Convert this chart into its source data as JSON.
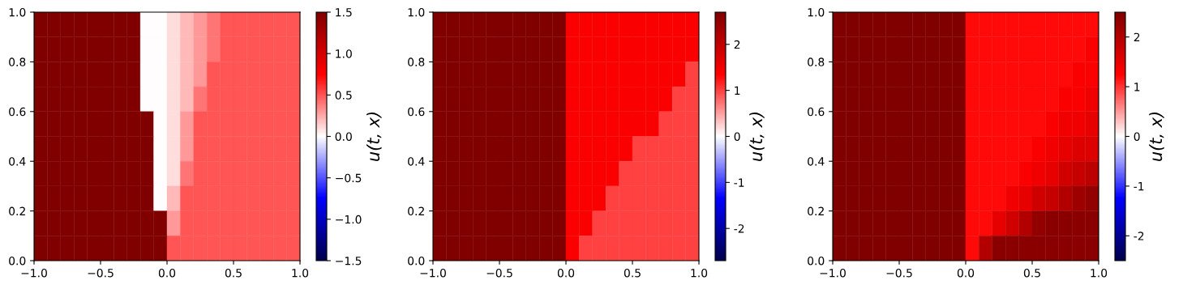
{
  "chart_data": [
    {
      "type": "heatmap",
      "xlim": [
        -1,
        1
      ],
      "ylim": [
        0,
        1
      ],
      "xticks": [
        {
          "value": -1,
          "label": "−1.0"
        },
        {
          "value": -0.5,
          "label": "−0.5"
        },
        {
          "value": 0,
          "label": "0.0"
        },
        {
          "value": 0.5,
          "label": "0.5"
        },
        {
          "value": 1,
          "label": "1.0"
        }
      ],
      "yticks": [
        {
          "value": 0,
          "label": "0.0"
        },
        {
          "value": 0.2,
          "label": "0.2"
        },
        {
          "value": 0.4,
          "label": "0.4"
        },
        {
          "value": 0.6,
          "label": "0.6"
        },
        {
          "value": 0.8,
          "label": "0.8"
        },
        {
          "value": 1,
          "label": "1.0"
        }
      ],
      "clim": [
        -1.5,
        1.5
      ],
      "clabel": "u(t, x)",
      "cticks": [
        {
          "value": -1.5,
          "label": "−1.5"
        },
        {
          "value": -1,
          "label": "−1.0"
        },
        {
          "value": -0.5,
          "label": "−0.5"
        },
        {
          "value": 0,
          "label": "0.0"
        },
        {
          "value": 0.5,
          "label": "0.5"
        },
        {
          "value": 1,
          "label": "1.0"
        },
        {
          "value": 1.5,
          "label": "1.5"
        }
      ],
      "cells": [
        [
          1.5,
          1.5,
          1.5,
          1.5,
          1.5,
          1.5,
          1.5,
          1.5,
          0,
          0,
          0.1,
          0.2,
          0.3,
          0.4,
          0.5,
          0.5,
          0.5,
          0.5,
          0.5,
          0.5
        ],
        [
          1.5,
          1.5,
          1.5,
          1.5,
          1.5,
          1.5,
          1.5,
          1.5,
          0,
          0,
          0.1,
          0.2,
          0.3,
          0.4,
          0.5,
          0.5,
          0.5,
          0.5,
          0.5,
          0.5
        ],
        [
          1.5,
          1.5,
          1.5,
          1.5,
          1.5,
          1.5,
          1.5,
          1.5,
          0,
          0,
          0.1,
          0.2,
          0.3,
          0.5,
          0.5,
          0.5,
          0.5,
          0.5,
          0.5,
          0.5
        ],
        [
          1.5,
          1.5,
          1.5,
          1.5,
          1.5,
          1.5,
          1.5,
          1.5,
          0,
          0,
          0.1,
          0.2,
          0.4,
          0.5,
          0.5,
          0.5,
          0.5,
          0.5,
          0.5,
          0.5
        ],
        [
          1.5,
          1.5,
          1.5,
          1.5,
          1.5,
          1.5,
          1.5,
          1.5,
          1.5,
          0,
          0.1,
          0.3,
          0.5,
          0.5,
          0.5,
          0.5,
          0.5,
          0.5,
          0.5,
          0.5
        ],
        [
          1.5,
          1.5,
          1.5,
          1.5,
          1.5,
          1.5,
          1.5,
          1.5,
          1.5,
          0,
          0.1,
          0.3,
          0.5,
          0.5,
          0.5,
          0.5,
          0.5,
          0.5,
          0.5,
          0.5
        ],
        [
          1.5,
          1.5,
          1.5,
          1.5,
          1.5,
          1.5,
          1.5,
          1.5,
          1.5,
          0,
          0.1,
          0.4,
          0.5,
          0.5,
          0.5,
          0.5,
          0.5,
          0.5,
          0.5,
          0.5
        ],
        [
          1.5,
          1.5,
          1.5,
          1.5,
          1.5,
          1.5,
          1.5,
          1.5,
          1.5,
          0,
          0.2,
          0.5,
          0.5,
          0.5,
          0.5,
          0.5,
          0.5,
          0.5,
          0.5,
          0.5
        ],
        [
          1.5,
          1.5,
          1.5,
          1.5,
          1.5,
          1.5,
          1.5,
          1.5,
          1.5,
          1.5,
          0.3,
          0.5,
          0.5,
          0.5,
          0.5,
          0.5,
          0.5,
          0.5,
          0.5,
          0.5
        ],
        [
          1.5,
          1.5,
          1.5,
          1.5,
          1.5,
          1.5,
          1.5,
          1.5,
          1.5,
          1.5,
          0.5,
          0.5,
          0.5,
          0.5,
          0.5,
          0.5,
          0.5,
          0.5,
          0.5,
          0.5
        ]
      ]
    },
    {
      "type": "heatmap",
      "xlim": [
        -1,
        1
      ],
      "ylim": [
        0,
        1
      ],
      "xticks": [
        {
          "value": -1,
          "label": "−1.0"
        },
        {
          "value": -0.5,
          "label": "−0.5"
        },
        {
          "value": 0,
          "label": "0.0"
        },
        {
          "value": 0.5,
          "label": "0.5"
        },
        {
          "value": 1,
          "label": "1.0"
        }
      ],
      "yticks": [
        {
          "value": 0,
          "label": "0.0"
        },
        {
          "value": 0.2,
          "label": "0.2"
        },
        {
          "value": 0.4,
          "label": "0.4"
        },
        {
          "value": 0.6,
          "label": "0.6"
        },
        {
          "value": 0.8,
          "label": "0.8"
        },
        {
          "value": 1,
          "label": "1.0"
        }
      ],
      "clim": [
        -2.7,
        2.7
      ],
      "clabel": "u(t, x)",
      "cticks": [
        -2,
        -1,
        0,
        1,
        2
      ],
      "cells": [
        [
          2.7,
          2.7,
          2.7,
          2.7,
          2.7,
          2.7,
          2.7,
          2.7,
          2.7,
          2.7,
          1.4,
          1.4,
          1.4,
          1.4,
          1.4,
          1.4,
          1.4,
          1.4,
          1.4,
          1.4
        ],
        [
          2.7,
          2.7,
          2.7,
          2.7,
          2.7,
          2.7,
          2.7,
          2.7,
          2.7,
          2.7,
          1.4,
          1.4,
          1.4,
          1.4,
          1.4,
          1.4,
          1.4,
          1.4,
          1.4,
          1.4
        ],
        [
          2.7,
          2.7,
          2.7,
          2.7,
          2.7,
          2.7,
          2.7,
          2.7,
          2.7,
          2.7,
          1.4,
          1.4,
          1.4,
          1.4,
          1.4,
          1.4,
          1.4,
          1.4,
          1.4,
          1.0
        ],
        [
          2.7,
          2.7,
          2.7,
          2.7,
          2.7,
          2.7,
          2.7,
          2.7,
          2.7,
          2.7,
          1.4,
          1.4,
          1.4,
          1.4,
          1.4,
          1.4,
          1.4,
          1.4,
          1.0,
          1.0
        ],
        [
          2.7,
          2.7,
          2.7,
          2.7,
          2.7,
          2.7,
          2.7,
          2.7,
          2.7,
          2.7,
          1.4,
          1.4,
          1.4,
          1.4,
          1.4,
          1.4,
          1.4,
          1.0,
          1.0,
          1.0
        ],
        [
          2.7,
          2.7,
          2.7,
          2.7,
          2.7,
          2.7,
          2.7,
          2.7,
          2.7,
          2.7,
          1.4,
          1.4,
          1.4,
          1.4,
          1.4,
          1.0,
          1.0,
          1.0,
          1.0,
          1.0
        ],
        [
          2.7,
          2.7,
          2.7,
          2.7,
          2.7,
          2.7,
          2.7,
          2.7,
          2.7,
          2.7,
          1.4,
          1.4,
          1.4,
          1.4,
          1.0,
          1.0,
          1.0,
          1.0,
          1.0,
          1.0
        ],
        [
          2.7,
          2.7,
          2.7,
          2.7,
          2.7,
          2.7,
          2.7,
          2.7,
          2.7,
          2.7,
          1.4,
          1.4,
          1.4,
          1.0,
          1.0,
          1.0,
          1.0,
          1.0,
          1.0,
          1.0
        ],
        [
          2.7,
          2.7,
          2.7,
          2.7,
          2.7,
          2.7,
          2.7,
          2.7,
          2.7,
          2.7,
          1.4,
          1.4,
          1.0,
          1.0,
          1.0,
          1.0,
          1.0,
          1.0,
          1.0,
          1.0
        ],
        [
          2.7,
          2.7,
          2.7,
          2.7,
          2.7,
          2.7,
          2.7,
          2.7,
          2.7,
          2.7,
          1.4,
          1.0,
          1.0,
          1.0,
          1.0,
          1.0,
          1.0,
          1.0,
          1.0,
          1.0
        ]
      ]
    },
    {
      "type": "heatmap",
      "xlim": [
        -1,
        1
      ],
      "ylim": [
        0,
        1
      ],
      "xticks": [
        {
          "value": -1,
          "label": "−1.0"
        },
        {
          "value": -0.5,
          "label": "−0.5"
        },
        {
          "value": 0,
          "label": "0.0"
        },
        {
          "value": 0.5,
          "label": "0.5"
        },
        {
          "value": 1,
          "label": "1.0"
        }
      ],
      "yticks": [
        {
          "value": 0,
          "label": "0.0"
        },
        {
          "value": 0.2,
          "label": "0.2"
        },
        {
          "value": 0.4,
          "label": "0.4"
        },
        {
          "value": 0.6,
          "label": "0.6"
        },
        {
          "value": 0.8,
          "label": "0.8"
        },
        {
          "value": 1,
          "label": "1.0"
        }
      ],
      "clim": [
        -2.5,
        2.5
      ],
      "clabel": "u(t, x)",
      "cticks": [
        -2,
        -1,
        0,
        1,
        2
      ],
      "cells": [
        [
          2.5,
          2.5,
          2.5,
          2.5,
          2.5,
          2.5,
          2.5,
          2.5,
          2.5,
          2.5,
          1.2,
          1.2,
          1.2,
          1.2,
          1.2,
          1.2,
          1.2,
          1.2,
          1.2,
          1.2
        ],
        [
          2.5,
          2.5,
          2.5,
          2.5,
          2.5,
          2.5,
          2.5,
          2.5,
          2.5,
          2.5,
          1.2,
          1.2,
          1.2,
          1.2,
          1.2,
          1.2,
          1.2,
          1.2,
          1.2,
          1.3
        ],
        [
          2.5,
          2.5,
          2.5,
          2.5,
          2.5,
          2.5,
          2.5,
          2.5,
          2.5,
          2.5,
          1.2,
          1.2,
          1.2,
          1.2,
          1.2,
          1.2,
          1.2,
          1.2,
          1.3,
          1.3
        ],
        [
          2.5,
          2.5,
          2.5,
          2.5,
          2.5,
          2.5,
          2.5,
          2.5,
          2.5,
          2.5,
          1.2,
          1.2,
          1.2,
          1.2,
          1.2,
          1.2,
          1.2,
          1.3,
          1.3,
          1.4
        ],
        [
          2.5,
          2.5,
          2.5,
          2.5,
          2.5,
          2.5,
          2.5,
          2.5,
          2.5,
          2.5,
          1.2,
          1.2,
          1.2,
          1.2,
          1.2,
          1.2,
          1.3,
          1.4,
          1.4,
          1.5
        ],
        [
          2.5,
          2.5,
          2.5,
          2.5,
          2.5,
          2.5,
          2.5,
          2.5,
          2.5,
          2.5,
          1.2,
          1.2,
          1.2,
          1.2,
          1.2,
          1.3,
          1.4,
          1.5,
          1.6,
          1.6
        ],
        [
          2.5,
          2.5,
          2.5,
          2.5,
          2.5,
          2.5,
          2.5,
          2.5,
          2.5,
          2.5,
          1.2,
          1.2,
          1.2,
          1.2,
          1.3,
          1.4,
          1.5,
          1.7,
          1.8,
          1.9
        ],
        [
          2.5,
          2.5,
          2.5,
          2.5,
          2.5,
          2.5,
          2.5,
          2.5,
          2.5,
          2.5,
          1.2,
          1.2,
          1.2,
          1.4,
          1.5,
          1.7,
          1.8,
          2.0,
          2.2,
          2.3
        ],
        [
          2.5,
          2.5,
          2.5,
          2.5,
          2.5,
          2.5,
          2.5,
          2.5,
          2.5,
          2.5,
          1.2,
          1.2,
          1.5,
          1.7,
          2.0,
          2.3,
          2.4,
          2.4,
          2.4,
          2.4
        ],
        [
          2.5,
          2.5,
          2.5,
          2.5,
          2.5,
          2.5,
          2.5,
          2.5,
          2.5,
          2.5,
          1.2,
          2.0,
          2.4,
          2.4,
          2.4,
          2.4,
          2.4,
          2.4,
          2.4,
          2.4
        ]
      ]
    }
  ]
}
